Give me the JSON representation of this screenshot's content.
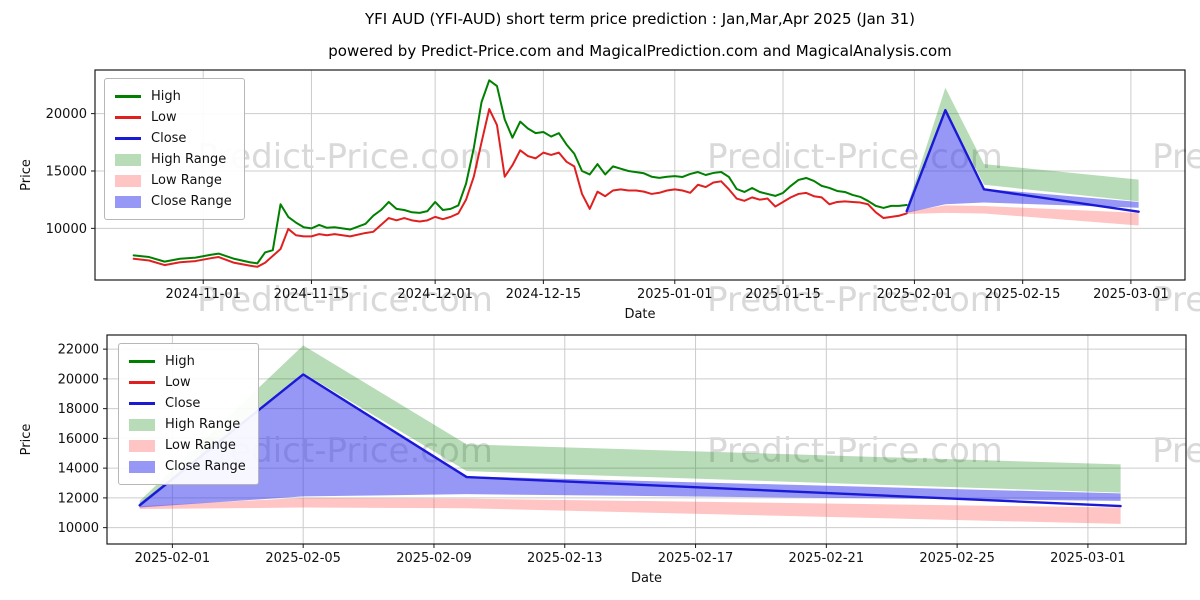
{
  "title": "YFI AUD (YFI-AUD) short term price prediction : Jan,Mar,Apr 2025 (Jan 31)",
  "subtitle": "powered by Predict-Price.com and MagicalPrediction.com and MagicalAnalysis.com",
  "watermark": {
    "text": "Predict-Price.com",
    "color": "#d9d9d9"
  },
  "colors": {
    "high": "#008000",
    "low": "#e02020",
    "close": "#1a1ad6",
    "high_range": "rgba(0,128,0,0.28)",
    "low_range": "rgba(255,70,70,0.32)",
    "close_range": "rgba(55,55,235,0.52)",
    "grid": "#cccccc",
    "spine": "#1a1a1a"
  },
  "legend": [
    {
      "label": "High",
      "swatch": "line",
      "color": "#008000"
    },
    {
      "label": "Low",
      "swatch": "line",
      "color": "#e02020"
    },
    {
      "label": "Close",
      "swatch": "line",
      "color": "#1a1ad6"
    },
    {
      "label": "High Range",
      "swatch": "patch",
      "color": "rgba(0,128,0,0.28)"
    },
    {
      "label": "Low Range",
      "swatch": "patch",
      "color": "rgba(255,70,70,0.32)"
    },
    {
      "label": "Close Range",
      "swatch": "patch",
      "color": "rgba(55,55,235,0.52)"
    }
  ],
  "chart_data": [
    {
      "type": "line",
      "name": "price-history-with-prediction",
      "xlabel": "Date",
      "ylabel": "Price",
      "xlim": [
        "2024-10-18",
        "2025-03-08"
      ],
      "ylim": [
        5500,
        23800
      ],
      "x_ticks": [
        "2024-11-01",
        "2024-11-15",
        "2024-12-01",
        "2024-12-15",
        "2025-01-01",
        "2025-01-15",
        "2025-02-01",
        "2025-02-15",
        "2025-03-01"
      ],
      "y_ticks": [
        10000,
        15000,
        20000
      ],
      "grid": true,
      "legend_position": "upper-left",
      "series": [
        {
          "name": "High",
          "color": "#008000",
          "width": 2,
          "dates": [
            "2024-10-23",
            "2024-10-25",
            "2024-10-27",
            "2024-10-29",
            "2024-10-31",
            "2024-11-02",
            "2024-11-03",
            "2024-11-05",
            "2024-11-07",
            "2024-11-08",
            "2024-11-09",
            "2024-11-10",
            "2024-11-11",
            "2024-11-12",
            "2024-11-13",
            "2024-11-14",
            "2024-11-15",
            "2024-11-16",
            "2024-11-17",
            "2024-11-18",
            "2024-11-19",
            "2024-11-20",
            "2024-11-22",
            "2024-11-23",
            "2024-11-24",
            "2024-11-25",
            "2024-11-26",
            "2024-11-27",
            "2024-11-28",
            "2024-11-29",
            "2024-11-30",
            "2024-12-01",
            "2024-12-02",
            "2024-12-03",
            "2024-12-04",
            "2024-12-05",
            "2024-12-06",
            "2024-12-07",
            "2024-12-08",
            "2024-12-09",
            "2024-12-10",
            "2024-12-11",
            "2024-12-12",
            "2024-12-13",
            "2024-12-14",
            "2024-12-15",
            "2024-12-16",
            "2024-12-17",
            "2024-12-18",
            "2024-12-19",
            "2024-12-20",
            "2024-12-21",
            "2024-12-22",
            "2024-12-23",
            "2024-12-24",
            "2024-12-25",
            "2024-12-26",
            "2024-12-27",
            "2024-12-28",
            "2024-12-29",
            "2024-12-30",
            "2024-12-31",
            "2025-01-01",
            "2025-01-02",
            "2025-01-03",
            "2025-01-04",
            "2025-01-05",
            "2025-01-06",
            "2025-01-07",
            "2025-01-08",
            "2025-01-09",
            "2025-01-10",
            "2025-01-11",
            "2025-01-12",
            "2025-01-13",
            "2025-01-14",
            "2025-01-15",
            "2025-01-16",
            "2025-01-17",
            "2025-01-18",
            "2025-01-19",
            "2025-01-20",
            "2025-01-21",
            "2025-01-22",
            "2025-01-23",
            "2025-01-24",
            "2025-01-25",
            "2025-01-26",
            "2025-01-27",
            "2025-01-28",
            "2025-01-29",
            "2025-01-30",
            "2025-01-31"
          ],
          "values": [
            7650,
            7500,
            7100,
            7350,
            7450,
            7700,
            7800,
            7350,
            7050,
            6950,
            7900,
            8100,
            12100,
            11000,
            10500,
            10100,
            10000,
            10300,
            10050,
            10100,
            10000,
            9900,
            10400,
            11100,
            11600,
            12300,
            11700,
            11600,
            11400,
            11350,
            11500,
            12300,
            11600,
            11700,
            12000,
            13900,
            17000,
            21000,
            22900,
            22400,
            19500,
            17900,
            19300,
            18700,
            18300,
            18400,
            18000,
            18300,
            17300,
            16500,
            15000,
            14700,
            15600,
            14700,
            15400,
            15200,
            15000,
            14900,
            14800,
            14500,
            14400,
            14500,
            14550,
            14480,
            14740,
            14910,
            14650,
            14830,
            14910,
            14480,
            13430,
            13170,
            13520,
            13170,
            13000,
            12830,
            13090,
            13700,
            14220,
            14390,
            14130,
            13700,
            13520,
            13260,
            13170,
            12910,
            12740,
            12390,
            11960,
            11780,
            11960,
            11960,
            12040
          ]
        },
        {
          "name": "Low",
          "color": "#e02020",
          "width": 2,
          "dates": [
            "2024-10-23",
            "2024-10-25",
            "2024-10-27",
            "2024-10-29",
            "2024-10-31",
            "2024-11-02",
            "2024-11-03",
            "2024-11-05",
            "2024-11-07",
            "2024-11-08",
            "2024-11-09",
            "2024-11-10",
            "2024-11-11",
            "2024-11-12",
            "2024-11-13",
            "2024-11-14",
            "2024-11-15",
            "2024-11-16",
            "2024-11-17",
            "2024-11-18",
            "2024-11-19",
            "2024-11-20",
            "2024-11-22",
            "2024-11-23",
            "2024-11-24",
            "2024-11-25",
            "2024-11-26",
            "2024-11-27",
            "2024-11-28",
            "2024-11-29",
            "2024-11-30",
            "2024-12-01",
            "2024-12-02",
            "2024-12-03",
            "2024-12-04",
            "2024-12-05",
            "2024-12-06",
            "2024-12-07",
            "2024-12-08",
            "2024-12-09",
            "2024-12-10",
            "2024-12-11",
            "2024-12-12",
            "2024-12-13",
            "2024-12-14",
            "2024-12-15",
            "2024-12-16",
            "2024-12-17",
            "2024-12-18",
            "2024-12-19",
            "2024-12-20",
            "2024-12-21",
            "2024-12-22",
            "2024-12-23",
            "2024-12-24",
            "2024-12-25",
            "2024-12-26",
            "2024-12-27",
            "2024-12-28",
            "2024-12-29",
            "2024-12-30",
            "2024-12-31",
            "2025-01-01",
            "2025-01-02",
            "2025-01-03",
            "2025-01-04",
            "2025-01-05",
            "2025-01-06",
            "2025-01-07",
            "2025-01-08",
            "2025-01-09",
            "2025-01-10",
            "2025-01-11",
            "2025-01-12",
            "2025-01-13",
            "2025-01-14",
            "2025-01-15",
            "2025-01-16",
            "2025-01-17",
            "2025-01-18",
            "2025-01-19",
            "2025-01-20",
            "2025-01-21",
            "2025-01-22",
            "2025-01-23",
            "2025-01-24",
            "2025-01-25",
            "2025-01-26",
            "2025-01-27",
            "2025-01-28",
            "2025-01-29",
            "2025-01-30",
            "2025-01-31"
          ],
          "values": [
            7350,
            7200,
            6800,
            7050,
            7150,
            7400,
            7500,
            7000,
            6750,
            6650,
            7000,
            7600,
            8200,
            9950,
            9400,
            9300,
            9300,
            9500,
            9400,
            9500,
            9400,
            9300,
            9600,
            9700,
            10300,
            10900,
            10700,
            10900,
            10700,
            10600,
            10700,
            11000,
            10800,
            11000,
            11300,
            12500,
            14500,
            17500,
            20400,
            19000,
            14500,
            15500,
            16800,
            16300,
            16100,
            16600,
            16400,
            16600,
            15800,
            15400,
            13000,
            11700,
            13200,
            12800,
            13300,
            13400,
            13300,
            13300,
            13200,
            13000,
            13100,
            13300,
            13400,
            13300,
            13100,
            13800,
            13600,
            14000,
            14100,
            13400,
            12600,
            12400,
            12700,
            12500,
            12600,
            11900,
            12300,
            12700,
            13000,
            13090,
            12800,
            12700,
            12100,
            12300,
            12350,
            12300,
            12250,
            12100,
            11400,
            10900,
            11000,
            11100,
            11300
          ]
        },
        {
          "name": "Close",
          "color": "#1a1ad6",
          "width": 2.4,
          "dates": [
            "2025-01-31",
            "2025-02-05",
            "2025-02-10",
            "2025-03-02"
          ],
          "values": [
            11500,
            20300,
            13400,
            11450
          ]
        }
      ],
      "bands": [
        {
          "name": "High Range",
          "color": "rgba(0,128,0,0.28)",
          "dates": [
            "2025-01-31",
            "2025-02-05",
            "2025-02-10",
            "2025-03-02"
          ],
          "upper": [
            11800,
            22250,
            15600,
            14250
          ],
          "lower": [
            11600,
            20400,
            13800,
            12350
          ]
        },
        {
          "name": "Low Range",
          "color": "rgba(255,70,70,0.32)",
          "dates": [
            "2025-01-31",
            "2025-02-05",
            "2025-02-10",
            "2025-03-02"
          ],
          "upper": [
            11450,
            12000,
            11950,
            11350
          ],
          "lower": [
            11250,
            11350,
            11300,
            10250
          ]
        },
        {
          "name": "Close Range",
          "color": "rgba(55,55,235,0.52)",
          "dates": [
            "2025-01-31",
            "2025-02-05",
            "2025-02-10",
            "2025-03-02"
          ],
          "upper": [
            11650,
            20300,
            13450,
            12300
          ],
          "lower": [
            11350,
            12100,
            12250,
            11800
          ]
        }
      ]
    },
    {
      "type": "line",
      "name": "prediction-detail",
      "xlabel": "Date",
      "ylabel": "Price",
      "xlim": [
        "2025-01-30",
        "2025-03-04"
      ],
      "ylim": [
        8900,
        22950
      ],
      "x_ticks": [
        "2025-02-01",
        "2025-02-05",
        "2025-02-09",
        "2025-02-13",
        "2025-02-17",
        "2025-02-21",
        "2025-02-25",
        "2025-03-01"
      ],
      "y_ticks": [
        10000,
        12000,
        14000,
        16000,
        18000,
        20000,
        22000
      ],
      "grid": true,
      "legend_position": "upper-left",
      "series": [
        {
          "name": "Close",
          "color": "#1a1ad6",
          "width": 2.4,
          "dates": [
            "2025-01-31",
            "2025-02-05",
            "2025-02-10",
            "2025-03-02"
          ],
          "values": [
            11500,
            20300,
            13400,
            11450
          ]
        }
      ],
      "bands": [
        {
          "name": "High Range",
          "color": "rgba(0,128,0,0.28)",
          "dates": [
            "2025-01-31",
            "2025-02-05",
            "2025-02-10",
            "2025-03-02"
          ],
          "upper": [
            11800,
            22250,
            15600,
            14250
          ],
          "lower": [
            11600,
            20400,
            13800,
            12350
          ]
        },
        {
          "name": "Low Range",
          "color": "rgba(255,70,70,0.32)",
          "dates": [
            "2025-01-31",
            "2025-02-05",
            "2025-02-10",
            "2025-03-02"
          ],
          "upper": [
            11450,
            12000,
            11950,
            11350
          ],
          "lower": [
            11250,
            11350,
            11300,
            10250
          ]
        },
        {
          "name": "Close Range",
          "color": "rgba(55,55,235,0.52)",
          "dates": [
            "2025-01-31",
            "2025-02-05",
            "2025-02-10",
            "2025-03-02"
          ],
          "upper": [
            11650,
            20300,
            13450,
            12300
          ],
          "lower": [
            11350,
            12100,
            12250,
            11800
          ]
        }
      ]
    }
  ]
}
